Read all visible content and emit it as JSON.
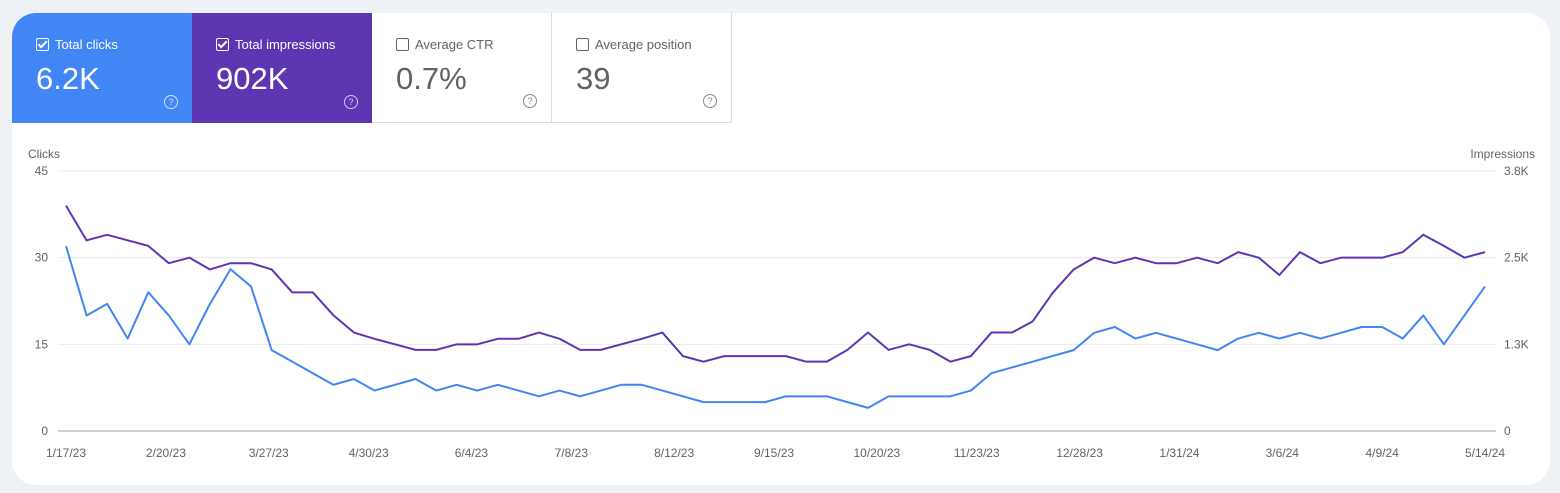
{
  "metrics": [
    {
      "label": "Total clicks",
      "value": "6.2K",
      "checked": true,
      "color": "#4285f4"
    },
    {
      "label": "Total impressions",
      "value": "902K",
      "checked": true,
      "color": "#5e35b1"
    },
    {
      "label": "Average CTR",
      "value": "0.7%",
      "checked": false
    },
    {
      "label": "Average position",
      "value": "39",
      "checked": false
    }
  ],
  "help_icon": "?",
  "chart_data": {
    "type": "line",
    "left_axis": {
      "label": "Clicks",
      "ticks": [
        "0",
        "15",
        "30",
        "45"
      ],
      "range": [
        0,
        45
      ]
    },
    "right_axis": {
      "label": "Impressions",
      "ticks": [
        "0",
        "1.3K",
        "2.5K",
        "3.8K"
      ],
      "range": [
        0,
        3750
      ]
    },
    "x_ticks": [
      "1/17/23",
      "2/20/23",
      "3/27/23",
      "4/30/23",
      "6/4/23",
      "7/8/23",
      "8/12/23",
      "9/15/23",
      "10/20/23",
      "11/23/23",
      "12/28/23",
      "1/31/24",
      "3/6/24",
      "4/9/24",
      "5/14/24"
    ],
    "x_range": [
      "1/17/23",
      "5/14/24"
    ],
    "grid": true,
    "x": [
      "1/17/23",
      "1/24/23",
      "1/31/23",
      "2/7/23",
      "2/14/23",
      "2/21/23",
      "2/28/23",
      "3/7/23",
      "3/14/23",
      "3/21/23",
      "3/28/23",
      "4/4/23",
      "4/11/23",
      "4/18/23",
      "4/25/23",
      "5/2/23",
      "5/9/23",
      "5/16/23",
      "5/23/23",
      "5/30/23",
      "6/6/23",
      "6/13/23",
      "6/20/23",
      "6/27/23",
      "7/4/23",
      "7/11/23",
      "7/18/23",
      "7/25/23",
      "8/1/23",
      "8/8/23",
      "8/15/23",
      "8/22/23",
      "8/29/23",
      "9/5/23",
      "9/12/23",
      "9/19/23",
      "9/26/23",
      "10/3/23",
      "10/10/23",
      "10/17/23",
      "10/24/23",
      "10/31/23",
      "11/7/23",
      "11/14/23",
      "11/21/23",
      "11/28/23",
      "12/5/23",
      "12/12/23",
      "12/19/23",
      "12/26/23",
      "1/2/24",
      "1/9/24",
      "1/16/24",
      "1/23/24",
      "1/30/24",
      "2/6/24",
      "2/13/24",
      "2/20/24",
      "2/27/24",
      "3/5/24",
      "3/12/24",
      "3/19/24",
      "3/26/24",
      "4/2/24",
      "4/9/24",
      "4/16/24",
      "4/23/24",
      "4/30/24",
      "5/7/24",
      "5/14/24"
    ],
    "series": [
      {
        "name": "Clicks",
        "axis": "left",
        "color": "#4285f4",
        "values": [
          32,
          20,
          22,
          16,
          24,
          20,
          15,
          22,
          28,
          25,
          14,
          12,
          10,
          8,
          9,
          7,
          8,
          9,
          7,
          8,
          7,
          8,
          7,
          6,
          7,
          6,
          7,
          8,
          8,
          7,
          6,
          5,
          5,
          5,
          5,
          6,
          6,
          6,
          5,
          4,
          6,
          6,
          6,
          6,
          7,
          10,
          11,
          12,
          13,
          14,
          17,
          18,
          16,
          17,
          16,
          15,
          14,
          16,
          17,
          16,
          17,
          16,
          17,
          18,
          18,
          16,
          20,
          15,
          20,
          25
        ]
      },
      {
        "name": "Impressions",
        "axis": "right",
        "color": "#5e35b1",
        "values": [
          3250,
          2750,
          2830,
          2750,
          2670,
          2420,
          2500,
          2330,
          2420,
          2420,
          2330,
          2000,
          2000,
          1670,
          1420,
          1330,
          1250,
          1170,
          1170,
          1250,
          1250,
          1330,
          1330,
          1420,
          1330,
          1170,
          1170,
          1250,
          1330,
          1420,
          1080,
          1000,
          1080,
          1080,
          1080,
          1080,
          1000,
          1000,
          1170,
          1420,
          1170,
          1250,
          1170,
          1000,
          1080,
          1420,
          1420,
          1580,
          2000,
          2330,
          2500,
          2420,
          2500,
          2420,
          2420,
          2500,
          2420,
          2580,
          2500,
          2250,
          2580,
          2420,
          2500,
          2500,
          2500,
          2580,
          2830,
          2670,
          2500,
          2580
        ]
      }
    ]
  }
}
